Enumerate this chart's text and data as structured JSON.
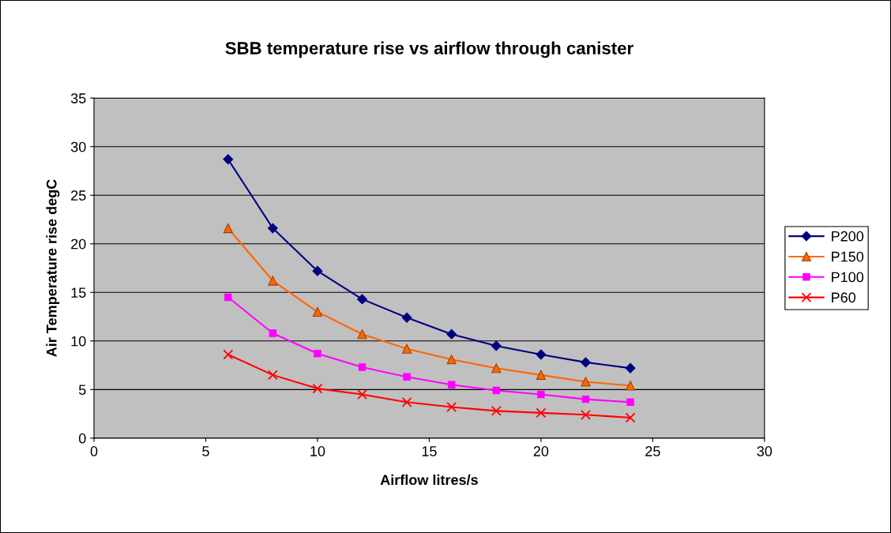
{
  "chart_data": {
    "type": "line",
    "title": "SBB temperature rise vs airflow through canister",
    "xlabel": "Airflow litres/s",
    "ylabel": "Air Temperature rise degC",
    "x": [
      6,
      8,
      10,
      12,
      14,
      16,
      18,
      20,
      22,
      24
    ],
    "series": [
      {
        "name": "P200",
        "color": "#000080",
        "marker": "diamond",
        "values": [
          28.7,
          21.6,
          17.2,
          14.3,
          12.4,
          10.7,
          9.5,
          8.6,
          7.8,
          7.2
        ]
      },
      {
        "name": "P150",
        "color": "#ff6600",
        "marker": "triangle",
        "values": [
          21.6,
          16.2,
          13.0,
          10.7,
          9.2,
          8.1,
          7.2,
          6.5,
          5.8,
          5.4
        ]
      },
      {
        "name": "P100",
        "color": "#ff00ff",
        "marker": "square",
        "values": [
          14.5,
          10.8,
          8.7,
          7.3,
          6.3,
          5.5,
          4.9,
          4.5,
          4.0,
          3.7
        ]
      },
      {
        "name": "P60",
        "color": "#ff0000",
        "marker": "cross",
        "values": [
          8.6,
          6.5,
          5.1,
          4.5,
          3.7,
          3.2,
          2.8,
          2.6,
          2.4,
          2.1
        ]
      }
    ],
    "xlim": [
      0,
      30
    ],
    "xticks": [
      0,
      5,
      10,
      15,
      20,
      25,
      30
    ],
    "ylim": [
      0,
      35
    ],
    "yticks": [
      0,
      5,
      10,
      15,
      20,
      25,
      30,
      35
    ],
    "grid": "y",
    "legend": "right",
    "line_style": "solid"
  }
}
